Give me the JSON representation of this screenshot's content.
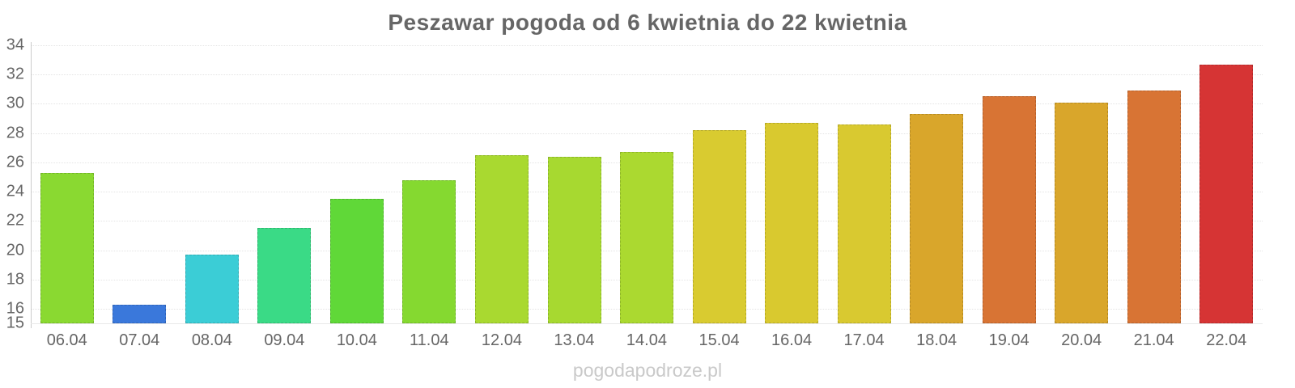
{
  "title": "Peszawar pogoda od 6 kwietnia do 22 kwietnia",
  "watermark": "pogodapodroze.pl",
  "colors": {
    "title_text": "#666666",
    "axis_label_text": "#666666",
    "axis_line": "#cccccc",
    "gridline": "#e4e4e4",
    "watermark_text": "#c9c9c9",
    "background": "#ffffff"
  },
  "chart_data": {
    "type": "bar",
    "title": "Peszawar pogoda od 6 kwietnia do 22 kwietnia",
    "xlabel": "",
    "ylabel": "",
    "categories": [
      "06.04",
      "07.04",
      "08.04",
      "09.04",
      "10.04",
      "11.04",
      "12.04",
      "13.04",
      "14.04",
      "15.04",
      "16.04",
      "17.04",
      "18.04",
      "19.04",
      "20.04",
      "21.04",
      "22.04"
    ],
    "values": [
      25.3,
      16.3,
      19.7,
      21.5,
      23.5,
      24.8,
      26.5,
      26.4,
      26.7,
      28.2,
      28.7,
      28.6,
      29.3,
      30.5,
      30.1,
      30.9,
      32.7
    ],
    "bar_colors": [
      "#8AD931",
      "#3A78DB",
      "#3BCDD6",
      "#3ADA86",
      "#60D838",
      "#85D930",
      "#A9D930",
      "#A7D930",
      "#ABD930",
      "#D9CB30",
      "#D9C92F",
      "#D9C930",
      "#D9A62B",
      "#D87434",
      "#D9A62B",
      "#D87434",
      "#D63434"
    ],
    "ylim": [
      15,
      34
    ],
    "yticks": [
      15,
      16,
      18,
      20,
      22,
      24,
      26,
      28,
      30,
      32,
      34
    ],
    "grid": "horizontal-dotted",
    "legend": "none",
    "unit": "°C"
  }
}
